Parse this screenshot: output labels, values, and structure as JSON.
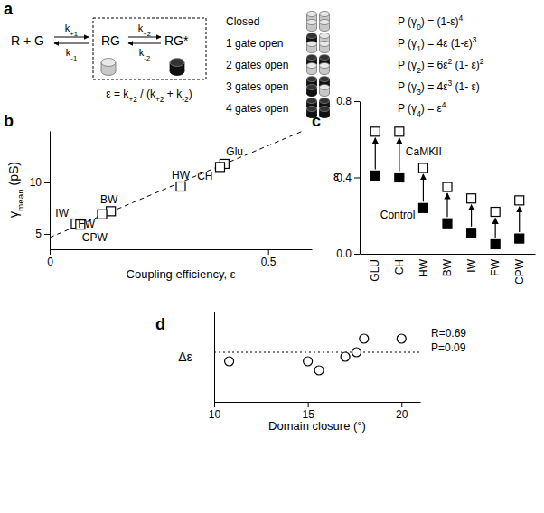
{
  "diagram": {
    "panel_label": "a",
    "scheme": {
      "reactants": "R + G",
      "bound": "RG",
      "active": "RG*",
      "k_on_1": "k+1",
      "k_off_1": "k-1",
      "k_on_2": "k+2",
      "k_off_2": "k-2",
      "efficiency": "ε = k+2 / (k+2 + k-2)"
    },
    "states": [
      {
        "label": "Closed",
        "open": 0,
        "probability": "P (γ0) = (1-ε)4"
      },
      {
        "label": "1 gate open",
        "open": 1,
        "probability": "P (γ1) = 4ε (1-ε)3"
      },
      {
        "label": "2 gates open",
        "open": 2,
        "probability": "P (γ2) = 6ε2 (1- ε)2"
      },
      {
        "label": "3 gates open",
        "open": 3,
        "probability": "P (γ3) = 4ε3 (1- ε)"
      },
      {
        "label": "4 gates open",
        "open": 4,
        "probability": "P (γ4) = ε4"
      }
    ]
  },
  "chart_data": [
    {
      "panel_label": "b",
      "type": "scatter",
      "x_label": "Coupling efficiency, ε",
      "y_label": "γmean (pS)",
      "xlim": [
        0,
        0.6
      ],
      "ylim": [
        3.5,
        15
      ],
      "xticks": [
        0,
        0.5
      ],
      "yticks": [
        5,
        10
      ],
      "x": [
        0.4,
        0.39,
        0.3,
        0.14,
        0.12,
        0.06,
        0.07
      ],
      "values": [
        11.8,
        11.5,
        9.6,
        7.2,
        6.9,
        6.0,
        5.9
      ],
      "point_labels": [
        "Glu",
        "CH",
        "HW",
        "BW",
        "FW",
        "IW",
        "CPW"
      ],
      "marker": "square-open",
      "color": "#000000",
      "fit": {
        "x": [
          0,
          0.58
        ],
        "values": [
          4.65,
          15.0
        ],
        "line_style": "dashed"
      }
    },
    {
      "panel_label": "c",
      "type": "scatter",
      "y_label": "ε",
      "categories": [
        "GLU",
        "CH",
        "HW",
        "BW",
        "IW",
        "FW",
        "CPW"
      ],
      "ylim": [
        0,
        0.8
      ],
      "yticks": [
        {
          "value": 0,
          "label": "0.0"
        },
        0.4,
        0.8
      ],
      "series": [
        {
          "name": "Control",
          "color": "#000000",
          "marker": "square-filled",
          "values": [
            0.41,
            0.4,
            0.24,
            0.16,
            0.11,
            0.05,
            0.08
          ]
        },
        {
          "name": "CaMKII",
          "color": "#000000",
          "marker": "square-open",
          "values": [
            0.64,
            0.64,
            0.45,
            0.35,
            0.29,
            0.22,
            0.28
          ]
        }
      ]
    },
    {
      "panel_label": "d",
      "type": "scatter",
      "x_label": "Domain closure (°)",
      "y_label": "Δε",
      "xlim": [
        10,
        21
      ],
      "ylim": [
        0.1,
        0.3
      ],
      "xticks": [
        10,
        15,
        20
      ],
      "tick_labels": "x",
      "x": [
        10.8,
        15.0,
        15.6,
        17.0,
        17.6,
        18.0,
        20.0
      ],
      "values": [
        0.19,
        0.19,
        0.17,
        0.2,
        0.21,
        0.24,
        0.24
      ],
      "marker": "circle-open",
      "color": "#000000",
      "reference_line": {
        "value": 0.21,
        "line_style": "dotted"
      },
      "annotations": [
        "R=0.69",
        "P=0.09"
      ]
    }
  ]
}
